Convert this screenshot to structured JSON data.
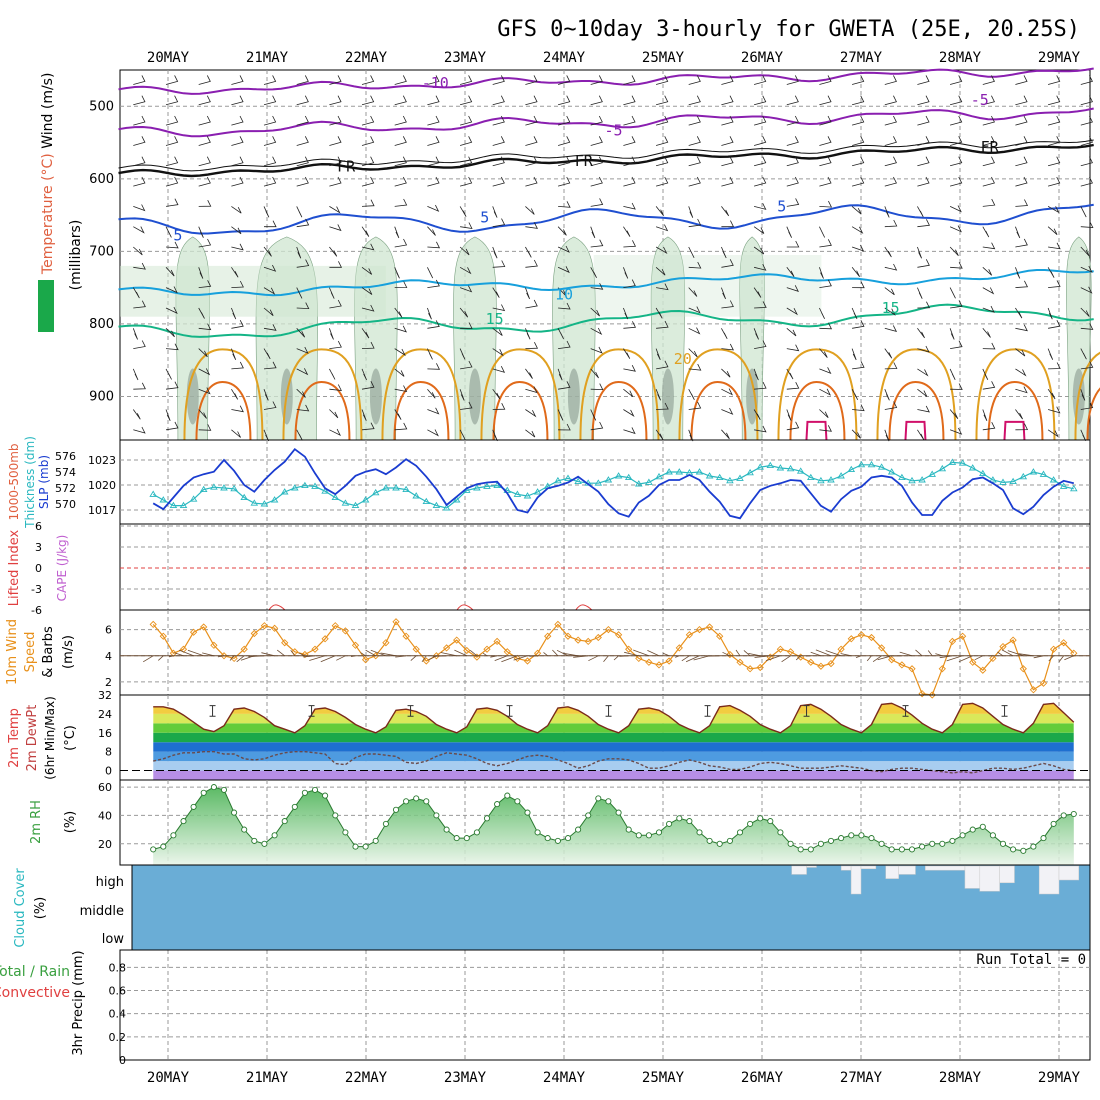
{
  "title": "GFS 0~10day 3-hourly for GWETA (25E, 20.25S)",
  "dates": [
    "20MAY",
    "21MAY",
    "22MAY",
    "23MAY",
    "24MAY",
    "25MAY",
    "26MAY",
    "27MAY",
    "28MAY",
    "29MAY"
  ],
  "colors": {
    "grid": "#9a9a9a",
    "temp_m10": "#8a1fb0",
    "temp_m5": "#8a1fb0",
    "temp_fr": "#111111",
    "temp_5": "#1f4fd0",
    "temp_10": "#17a0dc",
    "temp_15": "#14b486",
    "temp_20": "#e0a020",
    "temp_25": "#e06a1a",
    "temp_30": "#d0106a",
    "rh": "#cfe6d0",
    "rh_dark": "#7a8a80",
    "thickness": "#2ab8c0",
    "slp": "#1a3cd0",
    "lifted": "#e04040",
    "cape": "#c060d0",
    "wind": "#e8901a",
    "barb": "#6a4a30",
    "cloud": "#6aadd6",
    "rh2m": "#3aa040"
  },
  "chart_data": [
    {
      "id": "upper-air",
      "type": "line",
      "title": "Wind (m/s) / Temperature (°C) / RH (%)",
      "ylabel_parts": [
        "RH (%)",
        "Temperature (°C)",
        "Wind (m/s)"
      ],
      "yunit": "(millibars)",
      "ylim": [
        450,
        960
      ],
      "yticks": [
        500,
        600,
        700,
        800,
        900
      ],
      "contour_labels": [
        {
          "text": "-10",
          "t": 2.7,
          "p": 475,
          "color_key": "temp_m10"
        },
        {
          "text": "-5",
          "t": 4.5,
          "p": 540,
          "color_key": "temp_m5"
        },
        {
          "text": "-5",
          "t": 8.2,
          "p": 498,
          "color_key": "temp_m5"
        },
        {
          "text": "FR",
          "t": 1.8,
          "p": 590,
          "color_key": "temp_fr"
        },
        {
          "text": "FR",
          "t": 4.2,
          "p": 582,
          "color_key": "temp_fr"
        },
        {
          "text": "FR",
          "t": 8.3,
          "p": 563,
          "color_key": "temp_fr"
        },
        {
          "text": "5",
          "t": 0.1,
          "p": 685,
          "color_key": "temp_5"
        },
        {
          "text": "5",
          "t": 3.2,
          "p": 660,
          "color_key": "temp_5"
        },
        {
          "text": "5",
          "t": 6.2,
          "p": 645,
          "color_key": "temp_5"
        },
        {
          "text": "10",
          "t": 4.0,
          "p": 766,
          "color_key": "temp_10"
        },
        {
          "text": "15",
          "t": 3.3,
          "p": 800,
          "color_key": "temp_15"
        },
        {
          "text": "15",
          "t": 7.3,
          "p": 785,
          "color_key": "temp_15"
        },
        {
          "text": "20",
          "t": 5.2,
          "p": 855,
          "color_key": "temp_20"
        }
      ]
    },
    {
      "id": "slp-thickness",
      "type": "line",
      "ylabel_parts": [
        "1000-500mb",
        "Thickness (dm)",
        "SLP (mb)"
      ],
      "left_ticks": [
        570,
        572,
        574,
        576
      ],
      "right_ticks": [
        1017,
        1020,
        1023
      ],
      "series": [
        {
          "name": "Thickness (dm)",
          "axis": "left",
          "values": [
            571.2,
            570.5,
            569.8,
            569.8,
            570.6,
            571.8,
            572.1,
            572.0,
            571.9,
            570.8,
            570.1,
            570.0,
            570.5,
            571.5,
            572.0,
            572.3,
            572.2,
            571.6,
            570.8,
            570.1,
            569.8,
            570.5,
            571.4,
            572.0,
            572.0,
            571.8,
            571.0,
            570.3,
            569.8,
            569.5,
            570.5,
            571.7,
            572.0,
            572.2,
            572.3,
            571.7,
            571.2,
            571.0,
            571.5,
            572.2,
            572.9,
            573.2,
            572.8,
            572.6,
            572.6,
            573.0,
            573.5,
            573.3,
            572.5,
            572.7,
            573.4,
            574.0,
            574.0,
            573.9,
            574.0,
            573.5,
            573.3,
            572.9,
            573.2,
            573.9,
            574.6,
            574.8,
            574.5,
            574.4,
            574.1,
            573.3,
            572.9,
            573.0,
            573.5,
            574.3,
            574.9,
            574.9,
            574.6,
            574.0,
            573.3,
            572.9,
            573.0,
            573.7,
            574.4,
            575.2,
            575.1,
            574.5,
            573.8,
            573.0,
            572.7,
            572.8,
            573.4,
            574.0,
            573.7,
            573.0,
            572.2,
            571.9
          ]
        },
        {
          "name": "SLP (mb)",
          "axis": "right",
          "values": [
            1017.8,
            1017.1,
            1018.5,
            1019.9,
            1020.9,
            1021.3,
            1021.6,
            1023.0,
            1021.7,
            1020.0,
            1019.2,
            1020.6,
            1021.8,
            1022.8,
            1024.3,
            1023.4,
            1021.4,
            1019.6,
            1018.9,
            1019.9,
            1021.1,
            1021.6,
            1021.9,
            1021.3,
            1022.1,
            1023.1,
            1022.3,
            1021.0,
            1019.5,
            1017.6,
            1018.6,
            1019.6,
            1020.1,
            1020.3,
            1020.4,
            1019.0,
            1017.0,
            1016.7,
            1018.5,
            1019.6,
            1019.9,
            1020.3,
            1021.0,
            1020.1,
            1019.2,
            1017.7,
            1016.6,
            1016.2,
            1017.9,
            1018.7,
            1020.0,
            1020.6,
            1020.6,
            1021.2,
            1020.6,
            1019.2,
            1018.0,
            1016.3,
            1016.0,
            1017.8,
            1019.4,
            1019.9,
            1020.2,
            1020.6,
            1020.5,
            1019.0,
            1017.5,
            1016.8,
            1018.3,
            1019.3,
            1019.8,
            1020.9,
            1021.1,
            1020.9,
            1019.9,
            1017.9,
            1016.4,
            1016.4,
            1018.1,
            1019.1,
            1019.7,
            1020.7,
            1020.9,
            1020.2,
            1019.4,
            1017.2,
            1016.5,
            1017.4,
            1018.8,
            1019.8,
            1020.5,
            1020.2
          ]
        }
      ]
    },
    {
      "id": "lifted-cape",
      "type": "line",
      "ylabel_parts": [
        "Lifted Index",
        "CAPE (J/kg)"
      ],
      "yticks": [
        -6,
        -3,
        0,
        3,
        6
      ],
      "yticklabels": [
        "6",
        "3",
        "0",
        "-3",
        "-6"
      ],
      "cape_bumps_t": [
        1.1,
        3.0,
        4.2
      ]
    },
    {
      "id": "wind10m",
      "type": "line",
      "ylabel_parts": [
        "10m Wind",
        "Speed",
        "& Barbs",
        "(m/s)"
      ],
      "yticks": [
        2,
        4,
        6
      ],
      "ylim": [
        1.0,
        7.5
      ],
      "series": [
        {
          "name": "10m Wind Speed (m/s)",
          "values": [
            6.4,
            5.5,
            4.2,
            4.5,
            5.8,
            6.2,
            4.8,
            4.0,
            3.8,
            4.5,
            5.7,
            6.3,
            6.1,
            5.0,
            4.3,
            4.1,
            4.5,
            5.3,
            6.3,
            5.9,
            4.8,
            3.7,
            4.0,
            5.0,
            6.6,
            5.5,
            4.5,
            3.6,
            4.0,
            4.6,
            5.2,
            4.4,
            3.9,
            4.5,
            5.1,
            4.3,
            3.8,
            3.6,
            4.2,
            5.5,
            6.4,
            5.5,
            5.2,
            5.1,
            5.4,
            6.0,
            5.6,
            4.5,
            3.8,
            3.5,
            3.3,
            3.6,
            4.6,
            5.6,
            6.0,
            6.2,
            5.5,
            4.1,
            3.5,
            3.0,
            3.1,
            3.9,
            4.5,
            4.3,
            3.9,
            3.5,
            3.2,
            3.4,
            4.5,
            5.3,
            5.6,
            5.4,
            4.6,
            3.7,
            3.3,
            3.0,
            1.1,
            1.0,
            3.0,
            5.1,
            5.5,
            3.5,
            2.9,
            3.8,
            4.7,
            5.2,
            3.0,
            1.4,
            1.9,
            4.5,
            5.0,
            4.2
          ]
        }
      ]
    },
    {
      "id": "temp2m",
      "type": "area",
      "ylabel_parts": [
        "2m Temp",
        "2m DewPt",
        "(6hr Min/Max)",
        "(°C)"
      ],
      "yticks": [
        0,
        8,
        16,
        24,
        32
      ],
      "ylim": [
        -4,
        32
      ],
      "series": [
        {
          "name": "2m Temp (°C)",
          "values": [
            27.0,
            27.0,
            26.0,
            23.5,
            20.5,
            17.5,
            16.5,
            19.0,
            26.0,
            26.5,
            25.0,
            22.5,
            19.0,
            17.5,
            16.0,
            19.0,
            26.0,
            26.5,
            25.0,
            22.5,
            19.5,
            17.5,
            16.0,
            18.5,
            25.5,
            26.0,
            25.0,
            23.0,
            19.5,
            17.5,
            16.0,
            18.5,
            26.0,
            26.5,
            25.5,
            23.0,
            19.5,
            17.5,
            16.0,
            19.0,
            26.5,
            27.0,
            25.5,
            23.0,
            19.5,
            17.5,
            16.0,
            19.0,
            26.0,
            26.5,
            25.5,
            23.0,
            19.5,
            17.5,
            16.0,
            19.0,
            27.0,
            27.5,
            25.5,
            23.0,
            19.5,
            17.5,
            16.0,
            19.0,
            27.5,
            28.0,
            26.0,
            23.0,
            19.5,
            17.5,
            16.0,
            19.5,
            28.0,
            28.5,
            26.5,
            23.5,
            20.0,
            17.5,
            16.0,
            19.5,
            28.0,
            28.5,
            26.5,
            23.0,
            19.5,
            17.5,
            16.0,
            20.0,
            28.0,
            28.5,
            24.5,
            20.5
          ]
        },
        {
          "name": "2m DewPt (°C)",
          "values": [
            4.0,
            5.0,
            6.5,
            7.5,
            7.5,
            8.0,
            8.0,
            7.0,
            7.0,
            5.0,
            4.5,
            5.0,
            6.5,
            7.5,
            8.0,
            8.0,
            7.5,
            7.0,
            3.0,
            2.5,
            5.5,
            7.0,
            7.0,
            6.5,
            6.0,
            3.5,
            3.0,
            4.0,
            6.0,
            7.5,
            7.0,
            6.5,
            5.0,
            3.0,
            2.0,
            3.0,
            4.5,
            6.0,
            6.5,
            6.0,
            4.5,
            3.0,
            1.0,
            2.0,
            4.0,
            5.0,
            5.0,
            4.5,
            3.0,
            1.0,
            1.0,
            2.0,
            3.5,
            4.5,
            3.5,
            2.0,
            1.5,
            0.5,
            0.5,
            1.5,
            3.0,
            3.5,
            3.0,
            2.0,
            1.0,
            1.0,
            1.0,
            1.5,
            2.0,
            1.5,
            1.0,
            0.0,
            -0.5,
            0.5,
            1.0,
            1.0,
            0.5,
            0.0,
            -0.5,
            -1.0,
            -0.5,
            -1.0,
            0.0,
            1.0,
            1.0,
            0.5,
            1.0,
            2.0,
            3.0,
            2.0,
            0.5,
            0.0
          ]
        }
      ]
    },
    {
      "id": "rh2m",
      "type": "area",
      "ylabel_parts": [
        "2m RH",
        "(%)"
      ],
      "yticks": [
        20,
        40,
        60
      ],
      "ylim": [
        5,
        65
      ],
      "series": [
        {
          "name": "2m RH (%)",
          "values": [
            16,
            18,
            26,
            36,
            46,
            56,
            60,
            58,
            42,
            30,
            22,
            20,
            26,
            36,
            46,
            56,
            58,
            54,
            40,
            28,
            18,
            18,
            22,
            34,
            44,
            50,
            52,
            50,
            40,
            30,
            24,
            24,
            28,
            38,
            48,
            54,
            50,
            42,
            28,
            24,
            22,
            24,
            30,
            40,
            52,
            50,
            42,
            30,
            26,
            26,
            28,
            34,
            38,
            36,
            28,
            22,
            20,
            22,
            28,
            34,
            38,
            36,
            28,
            20,
            16,
            16,
            20,
            22,
            24,
            26,
            26,
            24,
            20,
            16,
            16,
            16,
            18,
            20,
            20,
            22,
            26,
            30,
            32,
            26,
            20,
            16,
            15,
            18,
            24,
            34,
            40,
            41
          ]
        }
      ]
    },
    {
      "id": "cloud",
      "type": "bar",
      "ylabel_parts": [
        "Cloud Cover",
        "(%)"
      ],
      "levels": [
        "high",
        "middle",
        "low"
      ],
      "high_clear_blocks": [
        {
          "t0": 6.3,
          "t1": 6.45,
          "frac": 0.3
        },
        {
          "t0": 6.45,
          "t1": 6.55,
          "frac": 0.05
        },
        {
          "t0": 6.8,
          "t1": 6.9,
          "frac": 0.15
        },
        {
          "t0": 6.9,
          "t1": 7.0,
          "frac": 1.0
        },
        {
          "t0": 7.0,
          "t1": 7.15,
          "frac": 0.1
        },
        {
          "t0": 7.25,
          "t1": 7.38,
          "frac": 0.45
        },
        {
          "t0": 7.38,
          "t1": 7.55,
          "frac": 0.3
        },
        {
          "t0": 7.65,
          "t1": 8.05,
          "frac": 0.15
        },
        {
          "t0": 8.05,
          "t1": 8.2,
          "frac": 0.8
        },
        {
          "t0": 8.2,
          "t1": 8.4,
          "frac": 0.9
        },
        {
          "t0": 8.4,
          "t1": 8.55,
          "frac": 0.6
        },
        {
          "t0": 8.8,
          "t1": 9.0,
          "frac": 1.0
        },
        {
          "t0": 9.0,
          "t1": 9.2,
          "frac": 0.5
        }
      ]
    },
    {
      "id": "precip",
      "type": "bar",
      "ylabel_parts": [
        "3hr Precip (mm)",
        "Total / Rain",
        "Convective"
      ],
      "yticks": [
        0,
        0.2,
        0.4,
        0.6,
        0.8
      ],
      "ylim": [
        0,
        0.95
      ],
      "run_total": "Run Total = 0",
      "values": []
    }
  ]
}
